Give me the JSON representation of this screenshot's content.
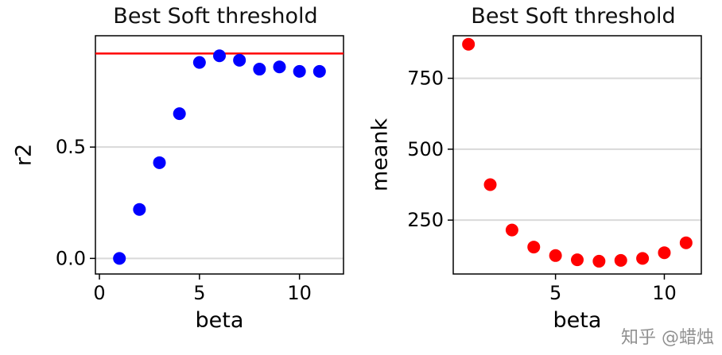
{
  "watermark": "知乎 @蜡烛",
  "chart_data": [
    {
      "type": "scatter",
      "title": "Best Soft threshold",
      "xlabel": "beta",
      "ylabel": "r2",
      "x": [
        1,
        2,
        3,
        4,
        5,
        6,
        7,
        8,
        9,
        10,
        11
      ],
      "y": [
        0.0,
        0.22,
        0.43,
        0.65,
        0.88,
        0.91,
        0.89,
        0.85,
        0.86,
        0.84,
        0.84
      ],
      "point_color": "#0000ff",
      "xlim": [
        -0.2,
        12.2
      ],
      "ylim": [
        -0.07,
        1.0
      ],
      "xticks": [
        0,
        5,
        10
      ],
      "xtick_labels": [
        "0",
        "5",
        "10"
      ],
      "yticks": [
        0,
        0.5
      ],
      "ytick_labels": [
        "0.0",
        "0.5"
      ],
      "grid": "horizontal",
      "legend": "none",
      "hline": {
        "y": 0.92,
        "color": "#ff0000"
      }
    },
    {
      "type": "scatter",
      "title": "Best Soft threshold",
      "xlabel": "beta",
      "ylabel": "meank",
      "x": [
        1,
        2,
        3,
        4,
        5,
        6,
        7,
        8,
        9,
        10,
        11
      ],
      "y": [
        870,
        375,
        215,
        155,
        125,
        110,
        105,
        108,
        115,
        135,
        170
      ],
      "point_color": "#ff0000",
      "xlim": [
        0.3,
        11.7
      ],
      "ylim": [
        60,
        900
      ],
      "xticks": [
        5,
        10
      ],
      "xtick_labels": [
        "5",
        "10"
      ],
      "yticks": [
        250,
        500,
        750
      ],
      "ytick_labels": [
        "250",
        "500",
        "750"
      ],
      "grid": "horizontal",
      "legend": "none"
    }
  ]
}
